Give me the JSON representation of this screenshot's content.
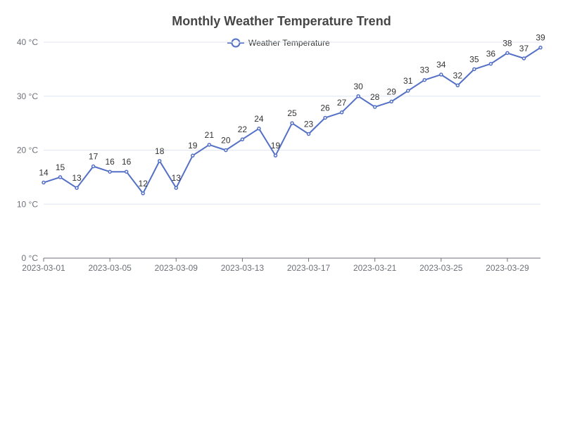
{
  "chart_data": {
    "type": "line",
    "title": "Monthly Weather Temperature Trend",
    "xlabel": "",
    "ylabel": "",
    "x": [
      "2023-03-01",
      "2023-03-02",
      "2023-03-03",
      "2023-03-04",
      "2023-03-05",
      "2023-03-06",
      "2023-03-07",
      "2023-03-08",
      "2023-03-09",
      "2023-03-10",
      "2023-03-11",
      "2023-03-12",
      "2023-03-13",
      "2023-03-14",
      "2023-03-15",
      "2023-03-16",
      "2023-03-17",
      "2023-03-18",
      "2023-03-19",
      "2023-03-20",
      "2023-03-21",
      "2023-03-22",
      "2023-03-23",
      "2023-03-24",
      "2023-03-25",
      "2023-03-26",
      "2023-03-27",
      "2023-03-28",
      "2023-03-29",
      "2023-03-30",
      "2023-03-31"
    ],
    "x_tick_labels": [
      "2023-03-01",
      "2023-03-05",
      "2023-03-09",
      "2023-03-13",
      "2023-03-17",
      "2023-03-21",
      "2023-03-25",
      "2023-03-29"
    ],
    "y_tick_labels": [
      "0 °C",
      "10 °C",
      "20 °C",
      "30 °C",
      "40 °C"
    ],
    "ylim": [
      0,
      40
    ],
    "grid": true,
    "legend_position": "top-center",
    "series": [
      {
        "name": "Weather Temperature",
        "color": "#5470c6",
        "values": [
          14,
          15,
          13,
          17,
          16,
          16,
          12,
          18,
          13,
          19,
          21,
          20,
          22,
          24,
          19,
          25,
          23,
          26,
          27,
          30,
          28,
          29,
          31,
          33,
          34,
          32,
          35,
          36,
          38,
          37,
          39
        ]
      }
    ]
  }
}
